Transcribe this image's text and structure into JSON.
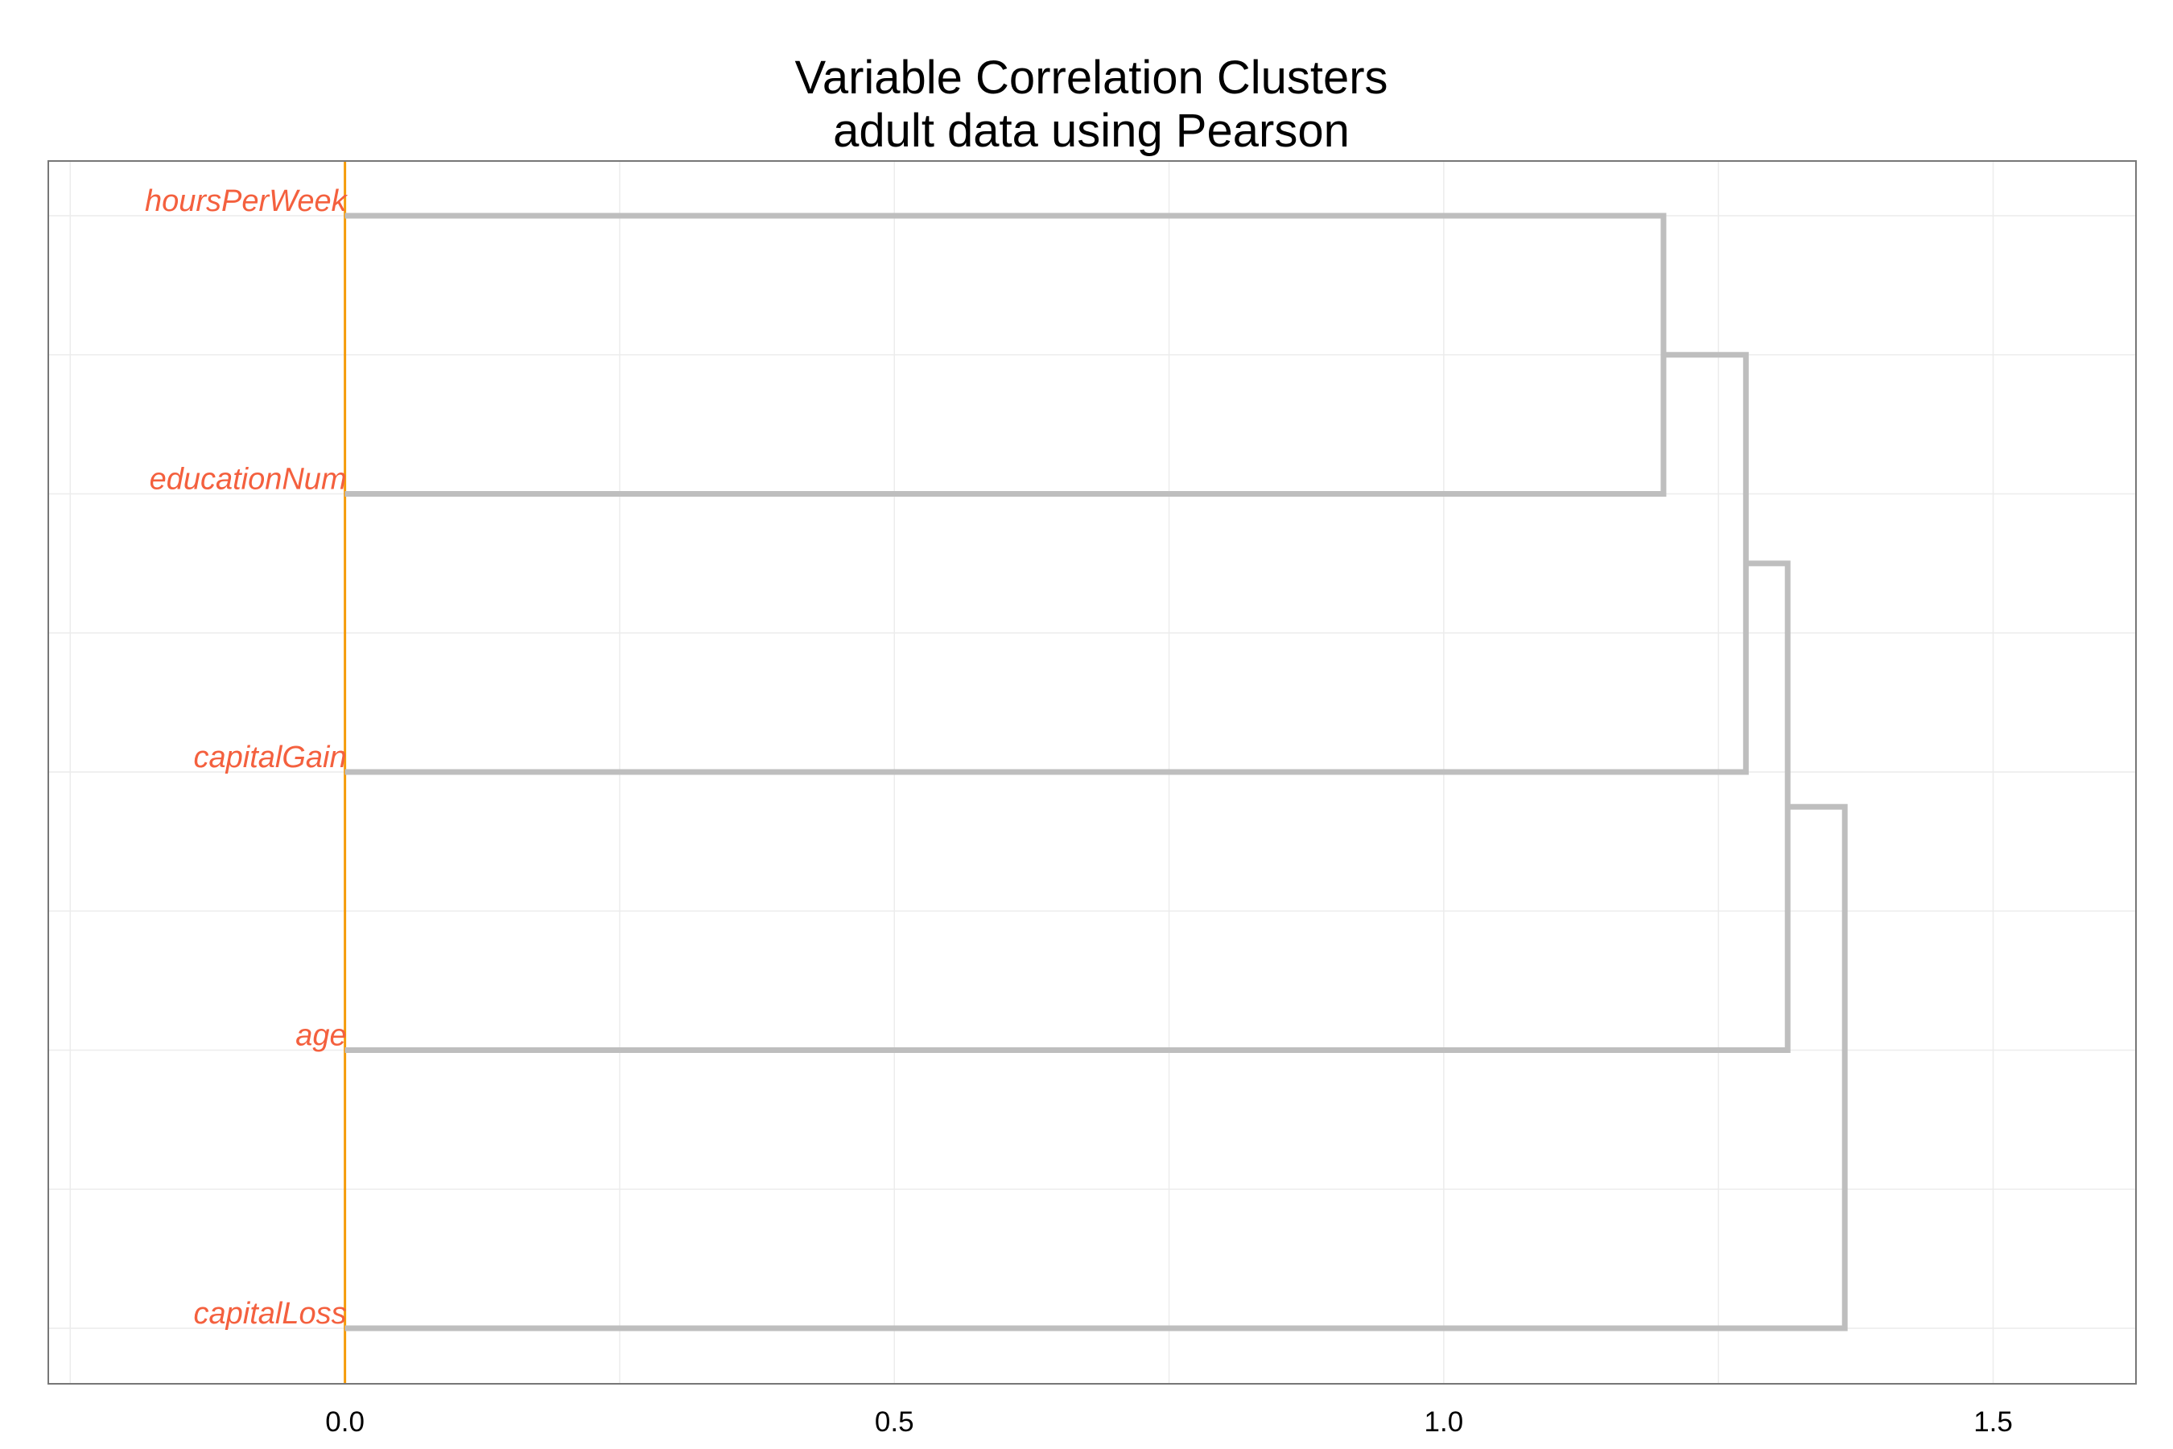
{
  "chart_data": {
    "type": "dendrogram",
    "title": "Variable Correlation Clusters",
    "subtitle": "adult data using Pearson",
    "xlabel": "",
    "ylabel": "",
    "orientation": "horizontal",
    "xlim": [
      -0.27,
      1.63
    ],
    "x_ticks": [
      0.0,
      0.5,
      1.0,
      1.5
    ],
    "x_tick_labels": [
      "0.0",
      "0.5",
      "1.0",
      "1.5"
    ],
    "grid": true,
    "leaves": [
      "hoursPerWeek",
      "educationNum",
      "capitalGain",
      "age",
      "capitalLoss"
    ],
    "merges": [
      {
        "left": "hoursPerWeek",
        "right": "educationNum",
        "height": 1.2
      },
      {
        "left": "hoursPerWeek+educationNum",
        "right": "capitalGain",
        "height": 1.275
      },
      {
        "left": "hoursPerWeek+educationNum+capitalGain",
        "right": "age",
        "height": 1.313
      },
      {
        "left": "hoursPerWeek+educationNum+capitalGain+age",
        "right": "capitalLoss",
        "height": 1.365
      }
    ],
    "colors": {
      "branch": "#bebebe",
      "leaf_label": "#f4603e",
      "reference_line": "#f59b0a",
      "panel_border": "#777777",
      "grid": "#ececec"
    }
  }
}
